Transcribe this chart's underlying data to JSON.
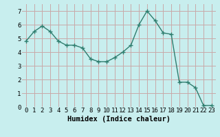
{
  "x": [
    0,
    1,
    2,
    3,
    4,
    5,
    6,
    7,
    8,
    9,
    10,
    11,
    12,
    13,
    14,
    15,
    16,
    17,
    18,
    19,
    20,
    21,
    22,
    23
  ],
  "y": [
    4.8,
    5.5,
    5.9,
    5.5,
    4.8,
    4.5,
    4.5,
    4.3,
    3.5,
    3.3,
    3.3,
    3.6,
    4.0,
    4.5,
    6.0,
    7.0,
    6.3,
    5.4,
    5.3,
    1.8,
    1.8,
    1.4,
    0.1,
    0.1
  ],
  "line_color": "#2e7d6e",
  "bg_color": "#c8eeee",
  "grid_color_h": "#c8a8a8",
  "grid_color_v": "#c8a8a8",
  "xlabel": "Humidex (Indice chaleur)",
  "xlim": [
    -0.5,
    23.5
  ],
  "ylim": [
    0,
    7.5
  ],
  "yticks": [
    0,
    1,
    2,
    3,
    4,
    5,
    6,
    7
  ],
  "xticks": [
    0,
    1,
    2,
    3,
    4,
    5,
    6,
    7,
    8,
    9,
    10,
    11,
    12,
    13,
    14,
    15,
    16,
    17,
    18,
    19,
    20,
    21,
    22,
    23
  ],
  "marker": "+",
  "markersize": 4,
  "linewidth": 1.0,
  "xlabel_fontsize": 7.5,
  "tick_fontsize": 6.5
}
